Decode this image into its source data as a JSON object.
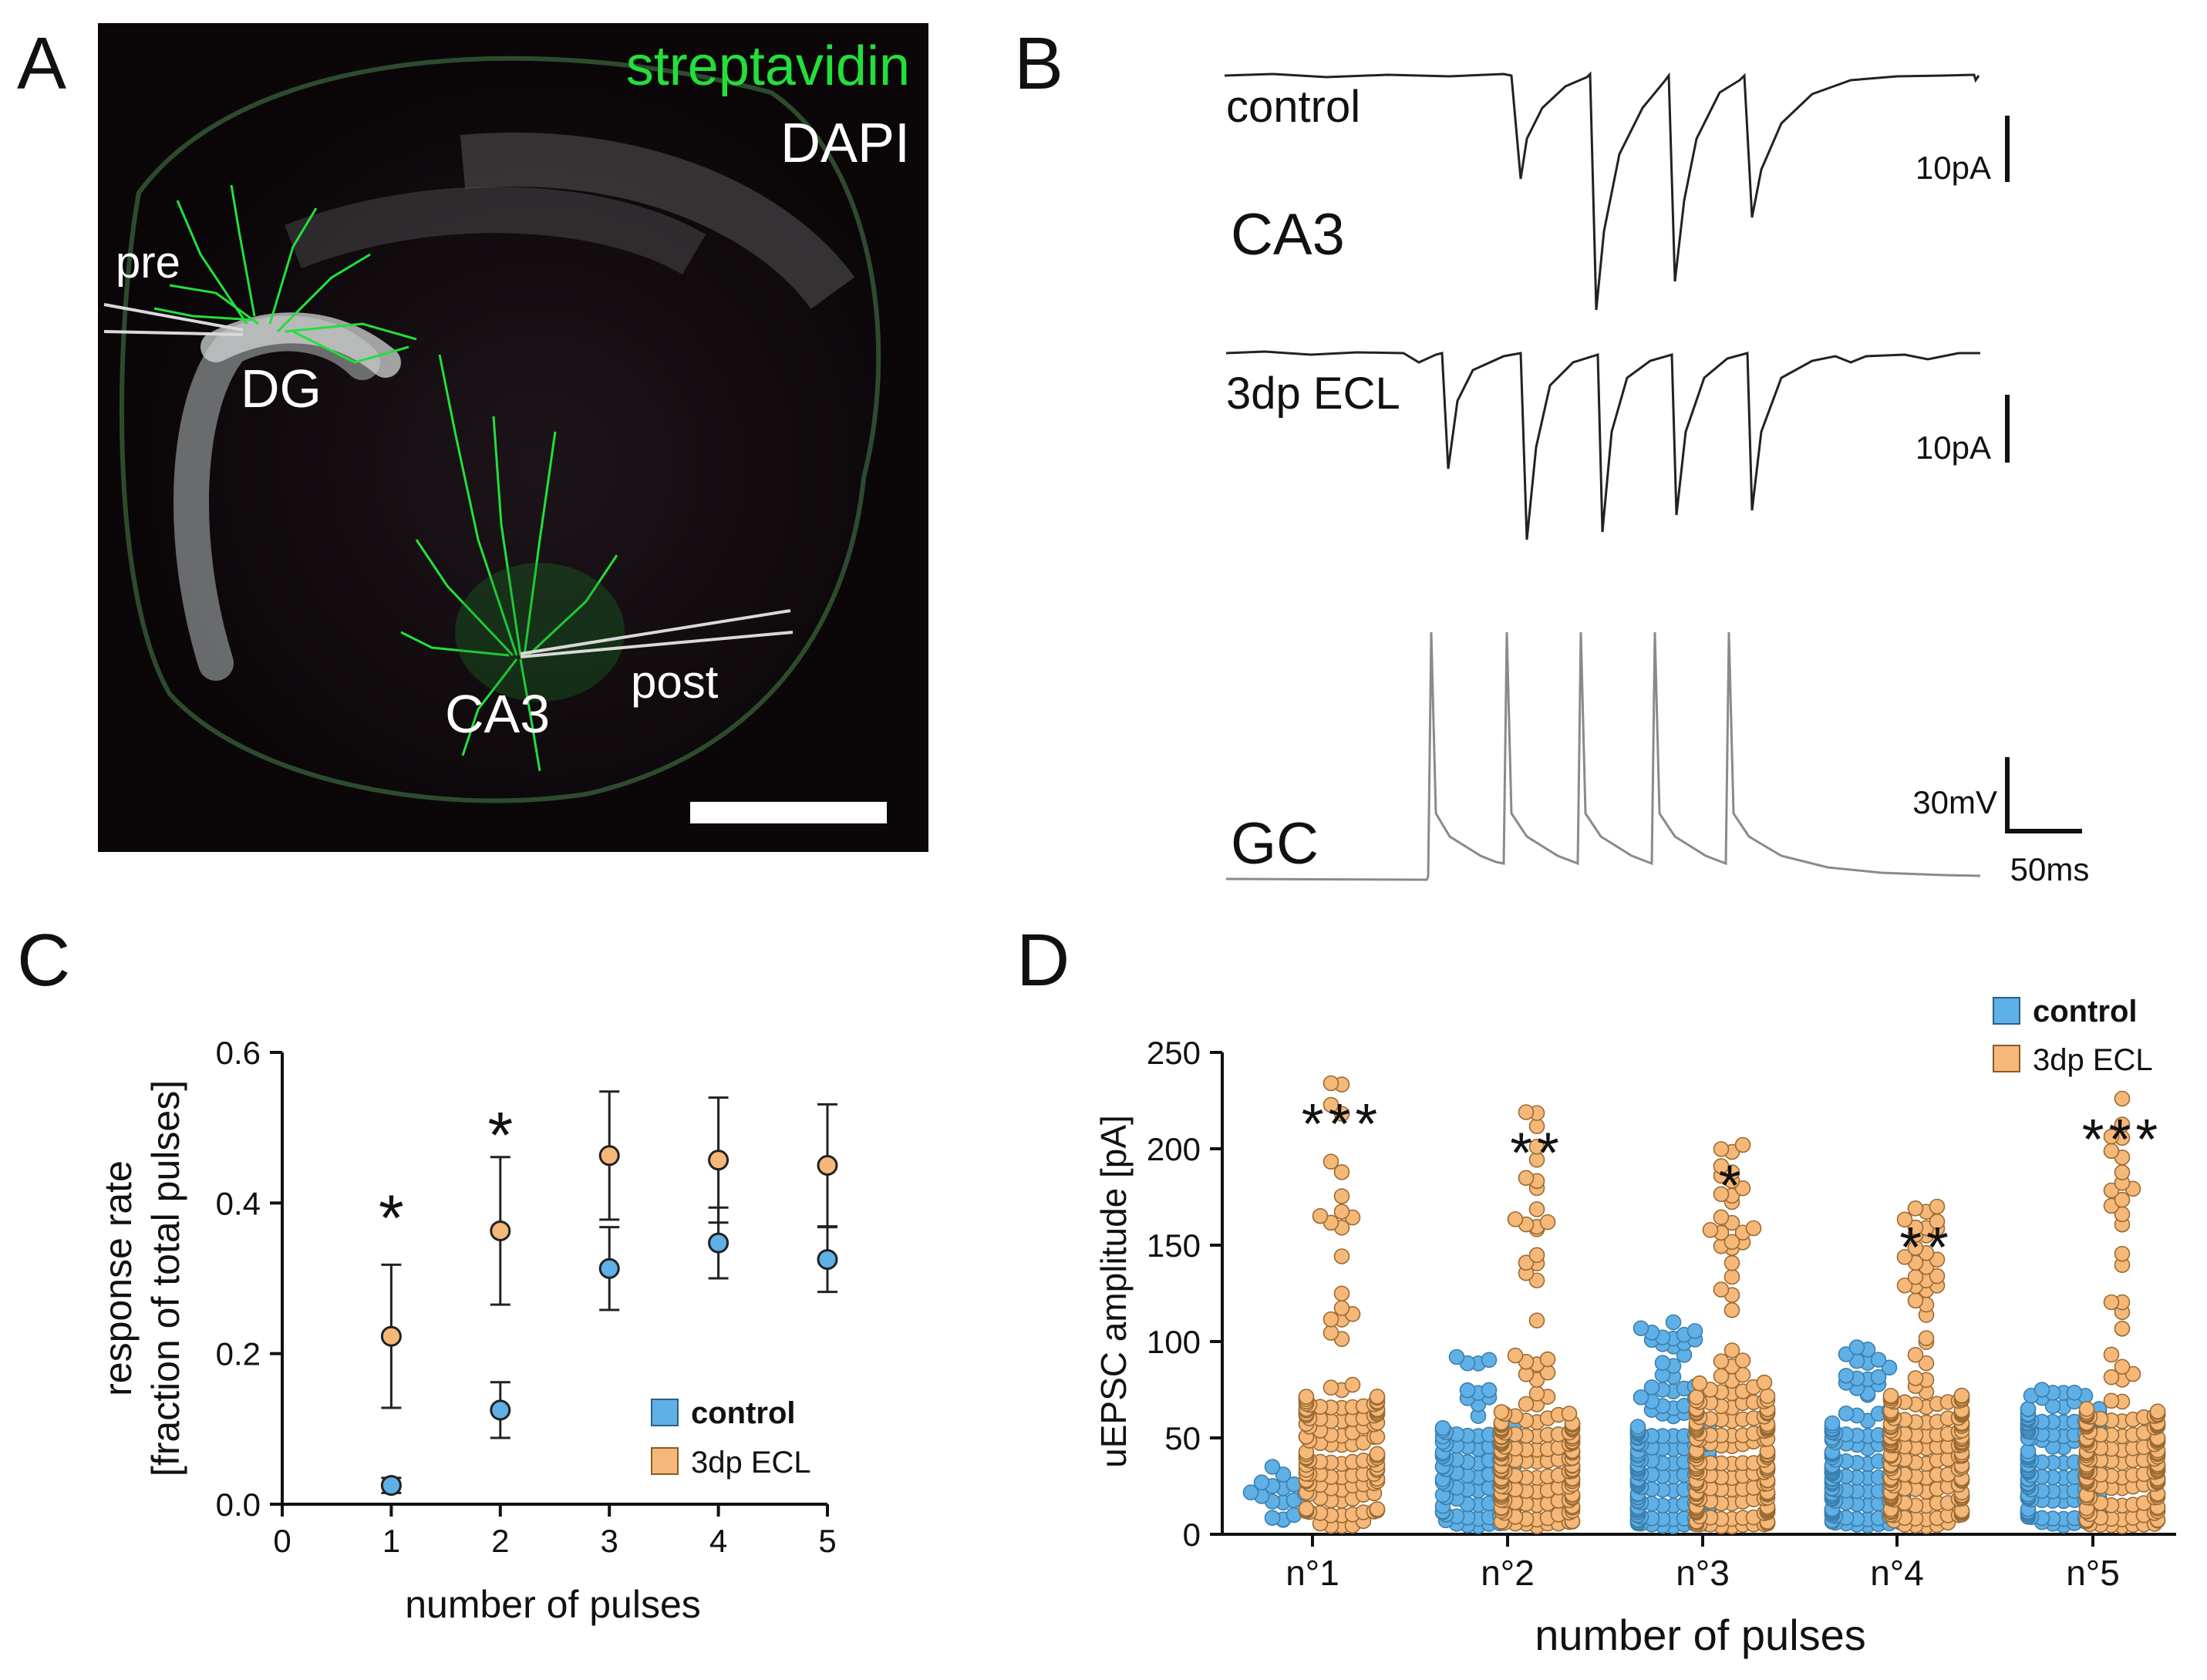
{
  "panels": {
    "A": "A",
    "B": "B",
    "C": "C",
    "D": "D"
  },
  "panel_a": {
    "stain_green": "streptavidin",
    "stain_white": "DAPI",
    "label_pre": "pre",
    "label_dg": "DG",
    "label_ca3": "CA3",
    "label_post": "post",
    "colors": {
      "background": "#0b0709",
      "green": "#22e03a",
      "nuclei": "#b9bcbc"
    }
  },
  "panel_b": {
    "trace_control": "control",
    "trace_ecl": "3dp ECL",
    "region": "CA3",
    "cell": "GC",
    "scale_current_1": "10pA",
    "scale_current_2": "10pA",
    "scale_voltage": "30mV",
    "scale_time": "50ms"
  },
  "chart_data": [
    {
      "panel": "C",
      "type": "scatter",
      "xlabel": "number of pulses",
      "ylabel_line1": "response rate",
      "ylabel_line2": "[fraction of total pulses]",
      "xlim": [
        0,
        5
      ],
      "ylim": [
        0,
        0.6
      ],
      "xticks": [
        0,
        1,
        2,
        3,
        4,
        5
      ],
      "xtick_labels": [
        "0",
        "1",
        "2",
        "3",
        "4",
        "5"
      ],
      "yticks": [
        0.0,
        0.2,
        0.4,
        0.6
      ],
      "ytick_labels": [
        "0.0",
        "0.2",
        "0.4",
        "0.6"
      ],
      "legend": [
        "control",
        "3dp ECL"
      ],
      "legend_position": "bottom-right",
      "series": [
        {
          "name": "control",
          "color": "#5fb0e6",
          "x": [
            1,
            2,
            3,
            4,
            5
          ],
          "mean": [
            0.025,
            0.125,
            0.313,
            0.347,
            0.325
          ],
          "err": [
            0.01,
            0.037,
            0.055,
            0.047,
            0.043
          ]
        },
        {
          "name": "3dp ECL",
          "color": "#f5b878",
          "x": [
            1,
            2,
            3,
            4,
            5
          ],
          "mean": [
            0.223,
            0.363,
            0.463,
            0.457,
            0.45
          ],
          "err": [
            0.095,
            0.098,
            0.085,
            0.083,
            0.081
          ]
        }
      ],
      "annotations": [
        {
          "x": 1,
          "y": 0.4,
          "text": "*"
        },
        {
          "x": 2,
          "y": 0.51,
          "text": "*"
        }
      ]
    },
    {
      "panel": "D",
      "type": "scatter",
      "subtype": "beeswarm",
      "xlabel": "number of pulses",
      "ylabel": "uEPSC amplitude [pA]",
      "ylim": [
        0,
        250
      ],
      "yticks": [
        0,
        50,
        100,
        150,
        200,
        250
      ],
      "ytick_labels": [
        "0",
        "50",
        "100",
        "150",
        "200",
        "250"
      ],
      "categories": [
        "n°1",
        "n°2",
        "n°3",
        "n°4",
        "n°5"
      ],
      "legend": [
        "control",
        "3dp ECL"
      ],
      "legend_position": "top-right",
      "series": [
        {
          "name": "control",
          "color": "#5fb0e6",
          "n": [
            16,
            95,
            180,
            170,
            165
          ],
          "median": [
            16,
            35,
            35,
            35,
            38
          ],
          "max": [
            35,
            92,
            110,
            97,
            75
          ]
        },
        {
          "name": "3dp ECL",
          "color": "#f5b878",
          "n": [
            140,
            170,
            200,
            185,
            175
          ],
          "median": [
            45,
            40,
            45,
            45,
            40
          ],
          "max": [
            234,
            219,
            202,
            170,
            226
          ]
        }
      ],
      "significance": [
        "***",
        "**",
        "*",
        "**",
        "***"
      ]
    }
  ]
}
